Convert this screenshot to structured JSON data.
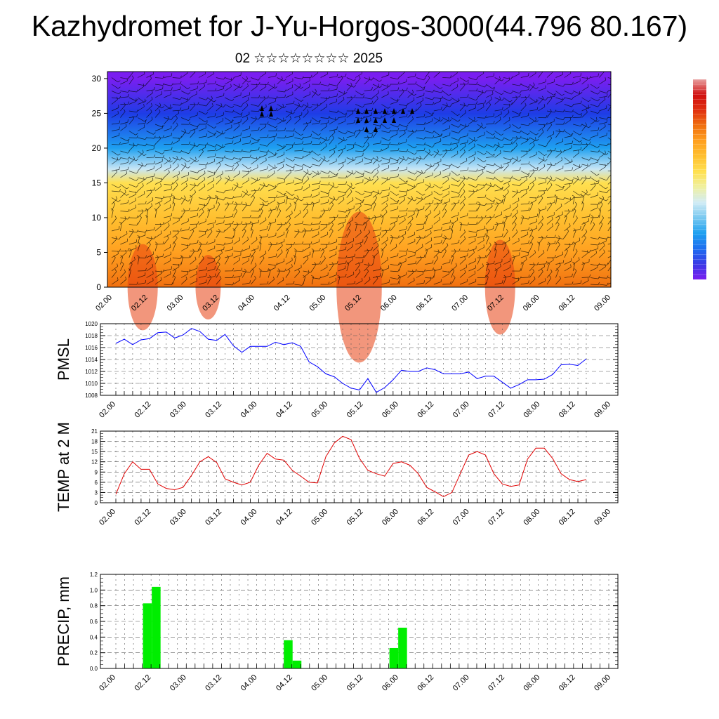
{
  "header": {
    "title": "Kazhydromet for J-Yu-Horgos-3000(44.796 80.167)",
    "subtitle": "02 ☆☆☆☆☆☆☆☆ 2025"
  },
  "x_tick_labels": [
    "02.00",
    "02.12",
    "03.00",
    "03.12",
    "04.00",
    "04.12",
    "05.00",
    "05.12",
    "06.00",
    "06.12",
    "07.00",
    "07.12",
    "08.00",
    "08.12",
    "09.00"
  ],
  "chart_data": [
    {
      "type": "heatmap",
      "title": "",
      "x_ticks": [
        "02.00",
        "02.12",
        "03.00",
        "03.12",
        "04.00",
        "04.12",
        "05.00",
        "05.12",
        "06.00",
        "06.12",
        "07.00",
        "07.12",
        "08.00",
        "08.12",
        "09.00"
      ],
      "y_ticks": [
        0,
        5,
        10,
        15,
        20,
        25,
        30
      ],
      "ylim": [
        0,
        31
      ],
      "colorbar": {
        "labels": [],
        "colors": [
          "#7a1ef0",
          "#3a3ae6",
          "#1e6ef0",
          "#1ea0f0",
          "#78c8f0",
          "#d2ecf5",
          "#f0f0a0",
          "#ffe050",
          "#ffc030",
          "#ffa020",
          "#f07010",
          "#e03010",
          "#d01010",
          "#e8a0a0"
        ]
      },
      "color_field_rows": [
        {
          "level": 0,
          "color": "#f07010"
        },
        {
          "level": 5,
          "color": "#ffa020"
        },
        {
          "level": 10,
          "color": "#ffc030"
        },
        {
          "level": 15,
          "color": "#ffe050"
        },
        {
          "level": 17,
          "color": "#c8e6f5"
        },
        {
          "level": 20,
          "color": "#1ea0f0"
        },
        {
          "level": 25,
          "color": "#1e3ce6"
        },
        {
          "level": 30,
          "color": "#7a1ef0"
        }
      ],
      "overlay": "wind barbs"
    },
    {
      "type": "line",
      "ylabel": "PMSL",
      "ylim": [
        1008,
        1020
      ],
      "y_ticks": [
        1008,
        1010,
        1012,
        1014,
        1016,
        1018,
        1020
      ],
      "x_ticks": [
        "02.00",
        "02.12",
        "03.00",
        "03.12",
        "04.00",
        "04.12",
        "05.00",
        "05.12",
        "06.00",
        "06.12",
        "07.00",
        "07.12",
        "08.00",
        "08.12",
        "09.00"
      ],
      "series": [
        {
          "color": "#0000ff",
          "x_step_hours": 3,
          "values": [
            1016.7,
            1017.4,
            1016.5,
            1017.3,
            1017.5,
            1018.5,
            1018.6,
            1017.6,
            1018.1,
            1019.2,
            1018.7,
            1017.4,
            1017.2,
            1018.2,
            1016.3,
            1015.2,
            1016.2,
            1016.2,
            1016.2,
            1016.9,
            1016.5,
            1016.8,
            1016.2,
            1013.6,
            1012.8,
            1011.6,
            1011.1,
            1010.0,
            1009.2,
            1008.9,
            1010.8,
            1008.5,
            1009.3,
            1010.6,
            1012.2,
            1012.0,
            1012.0,
            1012.6,
            1012.3,
            1011.6,
            1011.6,
            1011.6,
            1011.9,
            1010.8,
            1011.2,
            1011.2,
            1010.2,
            1009.2,
            1009.8,
            1010.6,
            1010.6,
            1010.7,
            1011.5,
            1013.1,
            1013.2,
            1013.0,
            1014.1
          ]
        }
      ]
    },
    {
      "type": "line",
      "ylabel": "TEMP at 2 M",
      "ylim": [
        0,
        21
      ],
      "y_ticks": [
        0,
        3,
        6,
        9,
        12,
        15,
        18,
        21
      ],
      "x_ticks": [
        "02.00",
        "02.12",
        "03.00",
        "03.12",
        "04.00",
        "04.12",
        "05.00",
        "05.12",
        "06.00",
        "06.12",
        "07.00",
        "07.12",
        "08.00",
        "08.12",
        "09.00"
      ],
      "series": [
        {
          "color": "#e00000",
          "x_step_hours": 3,
          "values": [
            2.5,
            8.5,
            12.0,
            9.8,
            9.8,
            5.5,
            4.2,
            3.8,
            4.5,
            8.0,
            12.0,
            13.5,
            11.8,
            7.0,
            6.0,
            5.2,
            6.0,
            11.0,
            14.5,
            12.8,
            12.5,
            9.5,
            7.8,
            6.0,
            5.8,
            13.5,
            17.5,
            19.5,
            18.5,
            13.0,
            9.5,
            8.5,
            7.8,
            11.5,
            12.0,
            11.0,
            8.5,
            4.5,
            3.2,
            1.8,
            3.0,
            8.5,
            14.0,
            15.0,
            14.0,
            8.5,
            5.5,
            4.8,
            5.2,
            12.8,
            16.0,
            16.0,
            13.0,
            8.5,
            6.8,
            6.2,
            6.8
          ]
        }
      ]
    },
    {
      "type": "bar",
      "ylabel": "PRECIP, mm",
      "ylim": [
        0,
        1.2
      ],
      "y_ticks": [
        "0.0",
        "0.2",
        "0.4",
        "0.6",
        "0.8",
        "1.0",
        "1.2"
      ],
      "x_ticks": [
        "02.00",
        "02.12",
        "03.00",
        "03.12",
        "04.00",
        "04.12",
        "05.00",
        "05.12",
        "06.00",
        "06.12",
        "07.00",
        "07.12",
        "08.00",
        "08.12",
        "09.00"
      ],
      "series": [
        {
          "color": "#00ee00",
          "x_step_hours": 3,
          "values": [
            0,
            0,
            0,
            0.83,
            1.04,
            0,
            0,
            0,
            0,
            0,
            0,
            0,
            0,
            0,
            0,
            0,
            0,
            0,
            0,
            0.36,
            0.1,
            0,
            0,
            0,
            0,
            0,
            0,
            0,
            0,
            0,
            0,
            0.26,
            0.52,
            0,
            0,
            0,
            0,
            0,
            0,
            0,
            0,
            0,
            0,
            0,
            0,
            0,
            0,
            0,
            0,
            0,
            0,
            0,
            0,
            0,
            0,
            0
          ]
        }
      ]
    }
  ]
}
